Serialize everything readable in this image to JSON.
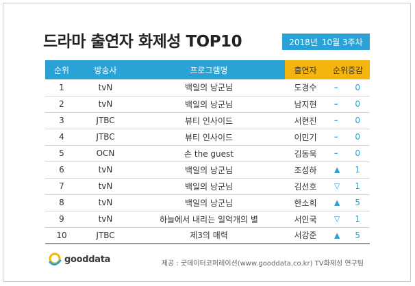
{
  "title": "드라마 출연자 화제성 TOP10",
  "date_badge": {
    "year": "2018년",
    "week": "10월 3주차"
  },
  "table": {
    "headers": {
      "rank": "순위",
      "broadcaster": "방송사",
      "program": "프로그램명",
      "actor": "출연자",
      "change": "순위증감"
    },
    "rows": [
      {
        "rank": "1",
        "broadcaster": "tvN",
        "program": "백일의 낭군님",
        "actor": "도경수",
        "symbol": "–",
        "value": "0"
      },
      {
        "rank": "2",
        "broadcaster": "tvN",
        "program": "백일의 낭군님",
        "actor": "남지현",
        "symbol": "–",
        "value": "0"
      },
      {
        "rank": "3",
        "broadcaster": "JTBC",
        "program": "뷰티 인사이드",
        "actor": "서현진",
        "symbol": "–",
        "value": "0"
      },
      {
        "rank": "4",
        "broadcaster": "JTBC",
        "program": "뷰티 인사이드",
        "actor": "이민기",
        "symbol": "–",
        "value": "0"
      },
      {
        "rank": "5",
        "broadcaster": "OCN",
        "program": "손 the guest",
        "actor": "김동욱",
        "symbol": "–",
        "value": "0"
      },
      {
        "rank": "6",
        "broadcaster": "tvN",
        "program": "백일의 낭군님",
        "actor": "조성하",
        "symbol": "▲",
        "value": "1"
      },
      {
        "rank": "7",
        "broadcaster": "tvN",
        "program": "백일의 낭군님",
        "actor": "김선호",
        "symbol": "▽",
        "value": "1"
      },
      {
        "rank": "8",
        "broadcaster": "tvN",
        "program": "백일의 낭군님",
        "actor": "한소희",
        "symbol": "▲",
        "value": "5"
      },
      {
        "rank": "9",
        "broadcaster": "tvN",
        "program": "하늘에서 내리는 일억개의 별",
        "actor": "서인국",
        "symbol": "▽",
        "value": "1"
      },
      {
        "rank": "10",
        "broadcaster": "JTBC",
        "program": "제3의 매력",
        "actor": "서강준",
        "symbol": "▲",
        "value": "5"
      }
    ]
  },
  "footer": {
    "logo_text": "gooddata",
    "logo_icon": "gooddata-logo-icon",
    "source": "제공 : 굿데이터코퍼레이션(www.gooddata.co.kr) TV화제성 연구팀"
  },
  "colors": {
    "header_blue": "#2aa2d6",
    "header_gold": "#f5b50f"
  }
}
